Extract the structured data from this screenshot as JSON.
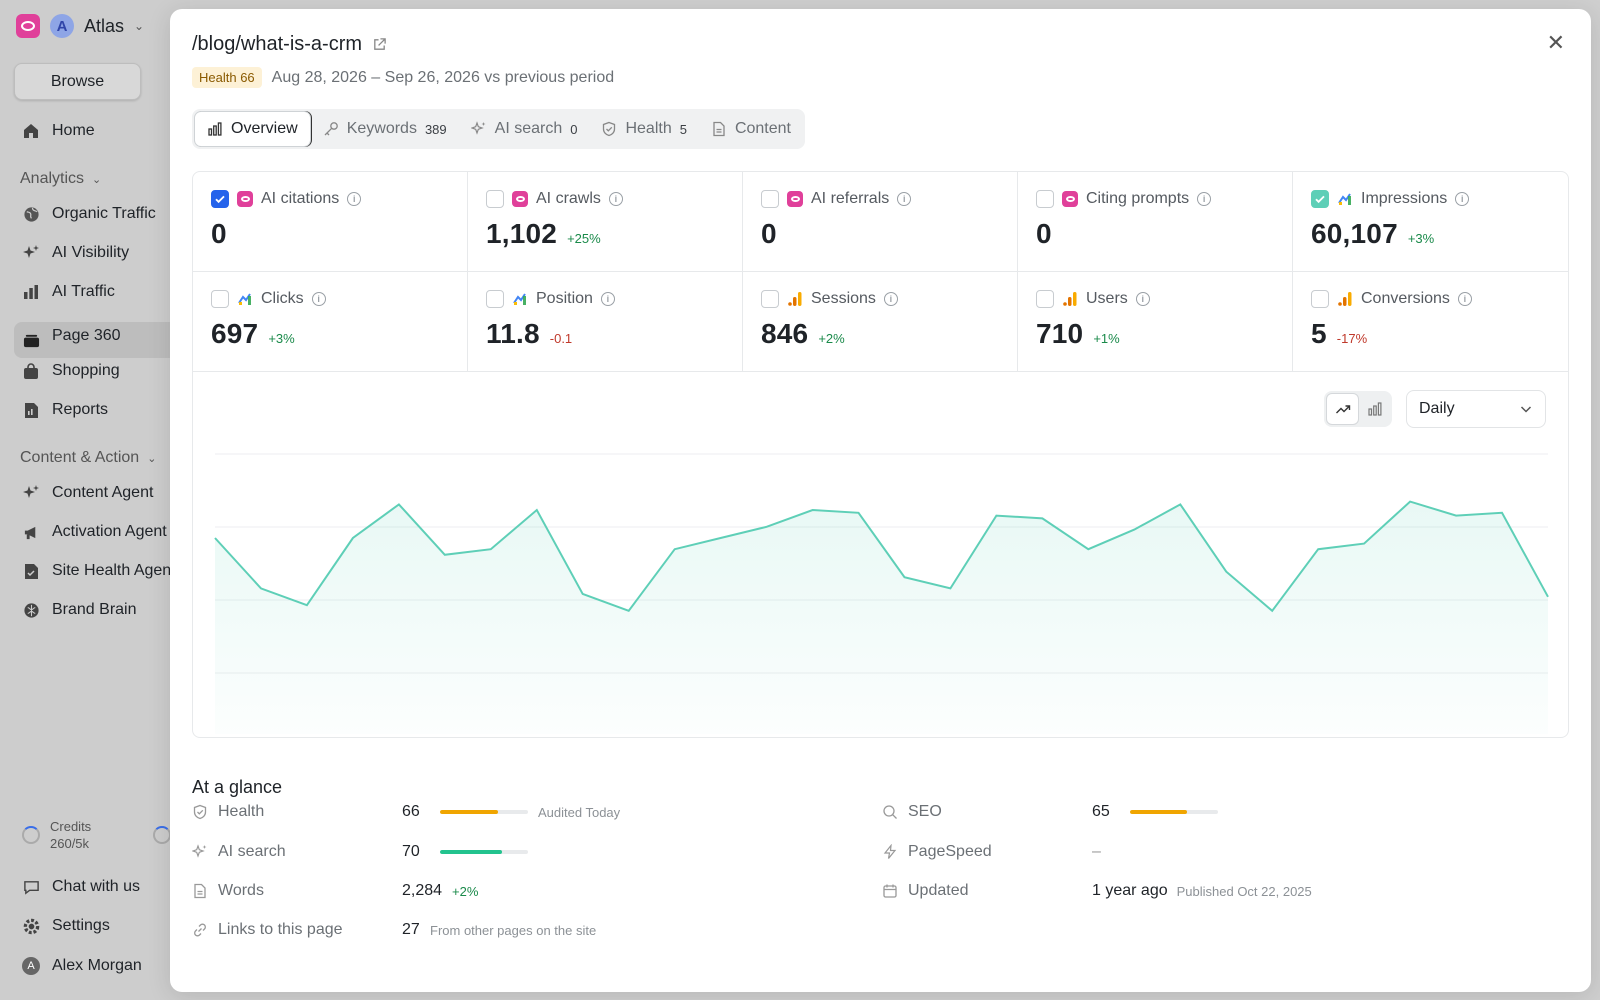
{
  "sidebar": {
    "workspace": "Atlas",
    "workspace_initial": "A",
    "browse": "Browse",
    "home": "Home",
    "analytics_header": "Analytics",
    "analytics_items": [
      "Organic Traffic",
      "AI Visibility",
      "AI Traffic",
      "Page 360",
      "Shopping",
      "Reports"
    ],
    "content_header": "Content & Action",
    "content_items": [
      "Content Agent",
      "Activation Agent",
      "Site Health Agent",
      "Brand Brain"
    ],
    "credits_label": "Credits",
    "credits_value": "260/5k",
    "chat": "Chat with us",
    "settings": "Settings",
    "user": "Alex Morgan",
    "user_initial": "A"
  },
  "modal": {
    "title": "/blog/what-is-a-crm",
    "health_badge": "Health 66",
    "period": "Aug 28, 2026 – Sep 26, 2026 vs previous period",
    "tabs": [
      {
        "label": "Overview",
        "count": ""
      },
      {
        "label": "Keywords",
        "count": "389"
      },
      {
        "label": "AI search",
        "count": "0"
      },
      {
        "label": "Health",
        "count": "5"
      },
      {
        "label": "Content",
        "count": ""
      }
    ],
    "metrics": [
      {
        "label": "AI citations",
        "value": "0",
        "delta": "",
        "checked": "blue",
        "source": "ai"
      },
      {
        "label": "AI crawls",
        "value": "1,102",
        "delta": "+25%",
        "checked": "",
        "source": "ai"
      },
      {
        "label": "AI referrals",
        "value": "0",
        "delta": "",
        "checked": "",
        "source": "ai"
      },
      {
        "label": "Citing prompts",
        "value": "0",
        "delta": "",
        "checked": "",
        "source": "ai"
      },
      {
        "label": "Impressions",
        "value": "60,107",
        "delta": "+3%",
        "checked": "teal",
        "source": "gsc"
      },
      {
        "label": "Clicks",
        "value": "697",
        "delta": "+3%",
        "checked": "",
        "source": "gsc"
      },
      {
        "label": "Position",
        "value": "11.8",
        "delta": "-0.1",
        "checked": "",
        "source": "gsc"
      },
      {
        "label": "Sessions",
        "value": "846",
        "delta": "+2%",
        "checked": "",
        "source": "ga"
      },
      {
        "label": "Users",
        "value": "710",
        "delta": "+1%",
        "checked": "",
        "source": "ga"
      },
      {
        "label": "Conversions",
        "value": "5",
        "delta": "-17%",
        "checked": "",
        "source": "ga"
      }
    ],
    "interval": "Daily",
    "colors": {
      "line": "#5ecfb7",
      "up": "#1a8a4a",
      "down": "#c0392b",
      "accent": "#2563eb",
      "brand": "#e0409a"
    },
    "glance_title": "At a glance",
    "glance": {
      "health_label": "Health",
      "health_value": "66",
      "health_score": 66,
      "health_note": "Audited Today",
      "ai_label": "AI search",
      "ai_value": "70",
      "ai_score": 70,
      "words_label": "Words",
      "words_value": "2,284",
      "words_delta": "+2%",
      "links_label": "Links to this page",
      "links_value": "27",
      "links_note": "From other pages on the site",
      "seo_label": "SEO",
      "seo_value": "65",
      "seo_score": 65,
      "pagespeed_label": "PageSpeed",
      "pagespeed_value": "–",
      "updated_label": "Updated",
      "updated_value": "1 year ago",
      "updated_note": "Published Oct 22, 2025"
    }
  },
  "chart_data": {
    "type": "area",
    "title": "",
    "xlabel": "",
    "ylabel": "",
    "grid": true,
    "series": [
      {
        "values": [
          2050,
          1960,
          1930,
          2050,
          2110,
          2020,
          2030,
          2100,
          1950,
          1920,
          2030,
          2050,
          2070,
          2100,
          2095,
          1980,
          1960,
          2090,
          2085,
          2030,
          2065,
          2110,
          1990,
          1920,
          2030,
          2040,
          2115,
          2090,
          2095,
          1945
        ]
      }
    ],
    "ylim": [
      1700,
      2200
    ]
  }
}
